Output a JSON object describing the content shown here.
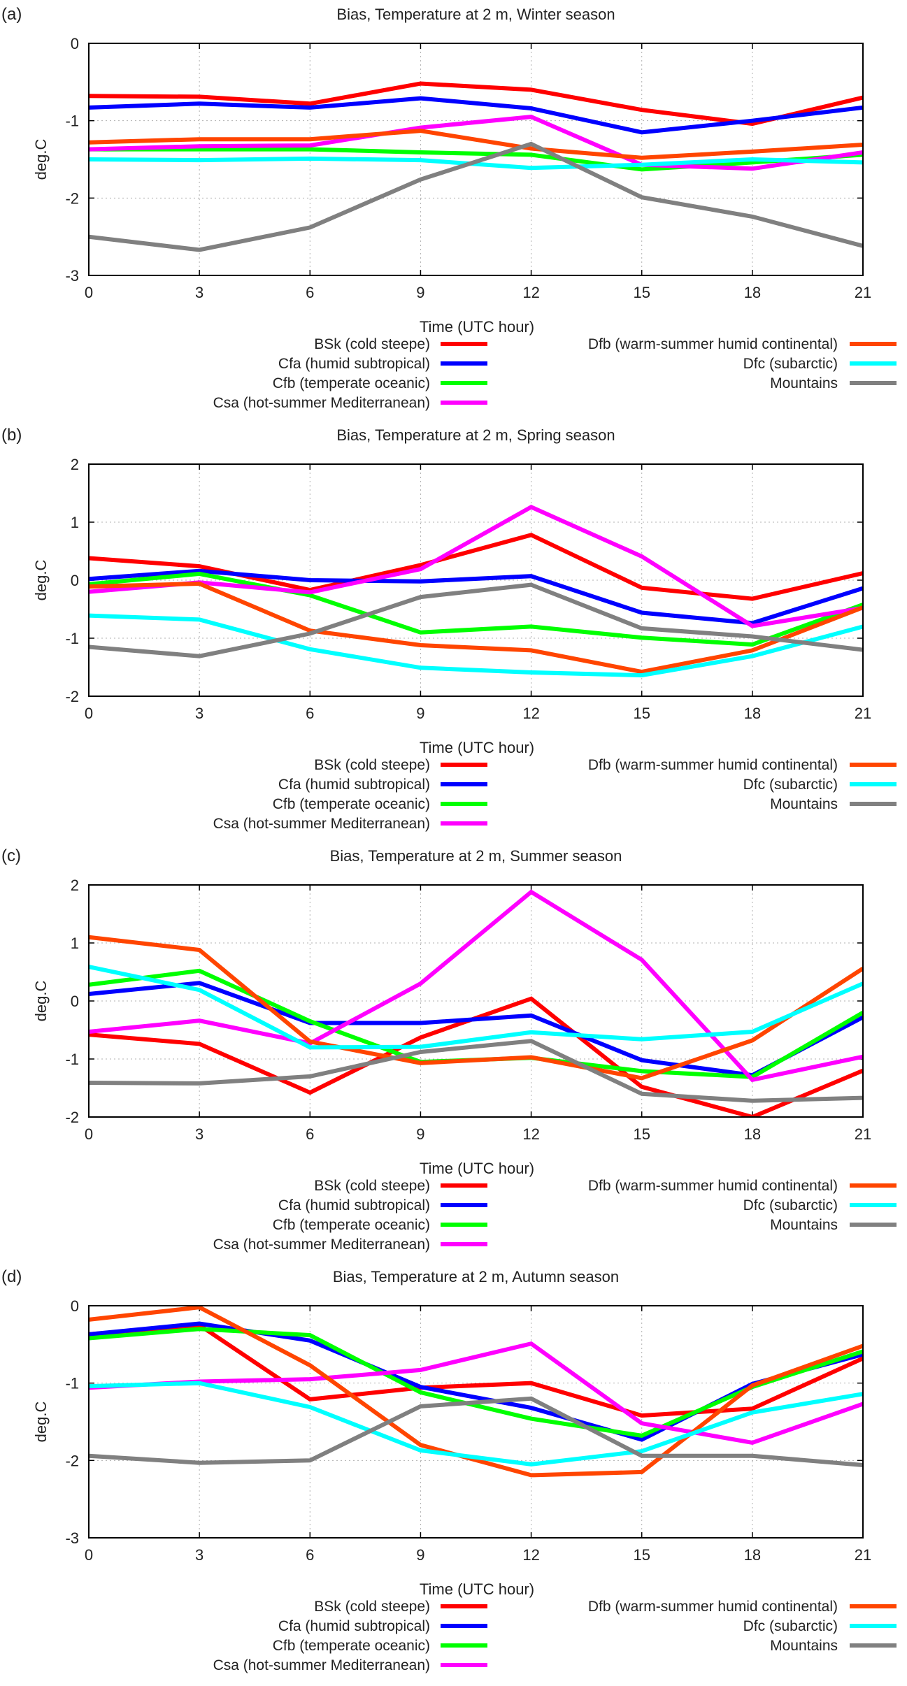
{
  "chart_data": [
    {
      "panel_label": "(a)",
      "type": "line",
      "title": "Bias, Temperature at 2 m, Winter season",
      "xlabel": "Time (UTC hour)",
      "ylabel": "deg.C",
      "x": [
        0,
        3,
        6,
        9,
        12,
        15,
        18,
        21
      ],
      "xlim": [
        0,
        21
      ],
      "ylim": [
        -3,
        0
      ],
      "yticks": [
        0,
        -1,
        -2,
        -3
      ],
      "grid": true,
      "legend_position": "below",
      "series": [
        {
          "name": "BSk (cold steepe)",
          "color": "#ff0000",
          "values": [
            -0.68,
            -0.69,
            -0.78,
            -0.52,
            -0.6,
            -0.86,
            -1.04,
            -0.7
          ]
        },
        {
          "name": "Cfa (humid subtropical)",
          "color": "#0000ff",
          "values": [
            -0.83,
            -0.78,
            -0.83,
            -0.71,
            -0.84,
            -1.15,
            -1.0,
            -0.83
          ]
        },
        {
          "name": "Cfb (temperate oceanic)",
          "color": "#00ff00",
          "values": [
            -1.37,
            -1.37,
            -1.37,
            -1.41,
            -1.44,
            -1.63,
            -1.54,
            -1.44
          ]
        },
        {
          "name": "Csa (hot-summer Mediterranean)",
          "color": "#ff00ff",
          "values": [
            -1.37,
            -1.33,
            -1.32,
            -1.09,
            -0.95,
            -1.57,
            -1.62,
            -1.41
          ]
        },
        {
          "name": "Dfb (warm-summer humid continental)",
          "color": "#ff4500",
          "values": [
            -1.28,
            -1.24,
            -1.24,
            -1.13,
            -1.36,
            -1.48,
            -1.4,
            -1.31
          ]
        },
        {
          "name": "Dfc (subarctic)",
          "color": "#00ffff",
          "values": [
            -1.5,
            -1.51,
            -1.49,
            -1.51,
            -1.61,
            -1.57,
            -1.5,
            -1.54
          ]
        },
        {
          "name": "Mountains",
          "color": "#808080",
          "values": [
            -2.5,
            -2.67,
            -2.38,
            -1.76,
            -1.3,
            -1.99,
            -2.24,
            -2.62
          ]
        }
      ]
    },
    {
      "panel_label": "(b)",
      "type": "line",
      "title": "Bias, Temperature at 2 m, Spring season",
      "xlabel": "Time (UTC hour)",
      "ylabel": "deg.C",
      "x": [
        0,
        3,
        6,
        9,
        12,
        15,
        18,
        21
      ],
      "xlim": [
        0,
        21
      ],
      "ylim": [
        -2,
        2
      ],
      "yticks": [
        2,
        1,
        0,
        -1,
        -2
      ],
      "grid": true,
      "legend_position": "below",
      "series": [
        {
          "name": "BSk (cold steepe)",
          "color": "#ff0000",
          "values": [
            0.38,
            0.24,
            -0.17,
            0.26,
            0.78,
            -0.13,
            -0.32,
            0.12
          ]
        },
        {
          "name": "Cfa (humid subtropical)",
          "color": "#0000ff",
          "values": [
            0.02,
            0.16,
            0.0,
            -0.02,
            0.07,
            -0.56,
            -0.74,
            -0.14
          ]
        },
        {
          "name": "Cfb (temperate oceanic)",
          "color": "#00ff00",
          "values": [
            -0.07,
            0.11,
            -0.26,
            -0.9,
            -0.8,
            -0.99,
            -1.11,
            -0.42
          ]
        },
        {
          "name": "Csa (hot-summer Mediterranean)",
          "color": "#ff00ff",
          "values": [
            -0.2,
            -0.04,
            -0.21,
            0.19,
            1.26,
            0.41,
            -0.79,
            -0.48
          ]
        },
        {
          "name": "Dfb (warm-summer humid continental)",
          "color": "#ff4500",
          "values": [
            -0.11,
            -0.06,
            -0.87,
            -1.12,
            -1.21,
            -1.58,
            -1.21,
            -0.47
          ]
        },
        {
          "name": "Dfc (subarctic)",
          "color": "#00ffff",
          "values": [
            -0.61,
            -0.68,
            -1.19,
            -1.51,
            -1.59,
            -1.64,
            -1.31,
            -0.8
          ]
        },
        {
          "name": "Mountains",
          "color": "#808080",
          "values": [
            -1.15,
            -1.31,
            -0.92,
            -0.29,
            -0.08,
            -0.83,
            -0.97,
            -1.2
          ]
        }
      ]
    },
    {
      "panel_label": "(c)",
      "type": "line",
      "title": "Bias, Temperature at 2 m, Summer season",
      "xlabel": "Time (UTC hour)",
      "ylabel": "deg.C",
      "x": [
        0,
        3,
        6,
        9,
        12,
        15,
        18,
        21
      ],
      "xlim": [
        0,
        21
      ],
      "ylim": [
        -2,
        2
      ],
      "yticks": [
        2,
        1,
        0,
        -1,
        -2
      ],
      "grid": true,
      "legend_position": "below",
      "series": [
        {
          "name": "BSk (cold steepe)",
          "color": "#ff0000",
          "values": [
            -0.58,
            -0.74,
            -1.58,
            -0.63,
            0.04,
            -1.48,
            -2.0,
            -1.2
          ]
        },
        {
          "name": "Cfa (humid subtropical)",
          "color": "#0000ff",
          "values": [
            0.12,
            0.31,
            -0.38,
            -0.38,
            -0.25,
            -1.02,
            -1.28,
            -0.28
          ]
        },
        {
          "name": "Cfb (temperate oceanic)",
          "color": "#00ff00",
          "values": [
            0.28,
            0.52,
            -0.35,
            -1.05,
            -0.98,
            -1.21,
            -1.31,
            -0.2
          ]
        },
        {
          "name": "Csa (hot-summer Mediterranean)",
          "color": "#ff00ff",
          "values": [
            -0.53,
            -0.34,
            -0.73,
            0.3,
            1.88,
            0.71,
            -1.36,
            -0.96
          ]
        },
        {
          "name": "Dfb (warm-summer humid continental)",
          "color": "#ff4500",
          "values": [
            1.1,
            0.88,
            -0.7,
            -1.07,
            -0.97,
            -1.33,
            -0.68,
            0.56
          ]
        },
        {
          "name": "Dfc (subarctic)",
          "color": "#00ffff",
          "values": [
            0.59,
            0.19,
            -0.8,
            -0.79,
            -0.54,
            -0.66,
            -0.53,
            0.3
          ]
        },
        {
          "name": "Mountains",
          "color": "#808080",
          "values": [
            -1.41,
            -1.42,
            -1.3,
            -0.88,
            -0.69,
            -1.6,
            -1.72,
            -1.67
          ]
        }
      ]
    },
    {
      "panel_label": "(d)",
      "type": "line",
      "title": "Bias, Temperature at 2 m, Autumn season",
      "xlabel": "Time (UTC hour)",
      "ylabel": "deg.C",
      "x": [
        0,
        3,
        6,
        9,
        12,
        15,
        18,
        21
      ],
      "xlim": [
        0,
        21
      ],
      "ylim": [
        -3,
        0
      ],
      "yticks": [
        0,
        -1,
        -2,
        -3
      ],
      "grid": true,
      "legend_position": "below",
      "series": [
        {
          "name": "BSk (cold steepe)",
          "color": "#ff0000",
          "values": [
            -0.37,
            -0.25,
            -1.21,
            -1.06,
            -1.0,
            -1.42,
            -1.33,
            -0.68
          ]
        },
        {
          "name": "Cfa (humid subtropical)",
          "color": "#0000ff",
          "values": [
            -0.37,
            -0.23,
            -0.45,
            -1.05,
            -1.32,
            -1.73,
            -1.01,
            -0.63
          ]
        },
        {
          "name": "Cfb (temperate oceanic)",
          "color": "#00ff00",
          "values": [
            -0.42,
            -0.3,
            -0.38,
            -1.12,
            -1.46,
            -1.68,
            -1.05,
            -0.59
          ]
        },
        {
          "name": "Csa (hot-summer Mediterranean)",
          "color": "#ff00ff",
          "values": [
            -1.06,
            -0.98,
            -0.95,
            -0.83,
            -0.49,
            -1.52,
            -1.77,
            -1.27
          ]
        },
        {
          "name": "Dfb (warm-summer humid continental)",
          "color": "#ff4500",
          "values": [
            -0.18,
            -0.02,
            -0.77,
            -1.8,
            -2.19,
            -2.15,
            -1.03,
            -0.52
          ]
        },
        {
          "name": "Dfc (subarctic)",
          "color": "#00ffff",
          "values": [
            -1.04,
            -1.0,
            -1.31,
            -1.87,
            -2.05,
            -1.88,
            -1.38,
            -1.14
          ]
        },
        {
          "name": "Mountains",
          "color": "#808080",
          "values": [
            -1.94,
            -2.03,
            -2.0,
            -1.3,
            -1.2,
            -1.94,
            -1.94,
            -2.06
          ]
        }
      ]
    }
  ]
}
